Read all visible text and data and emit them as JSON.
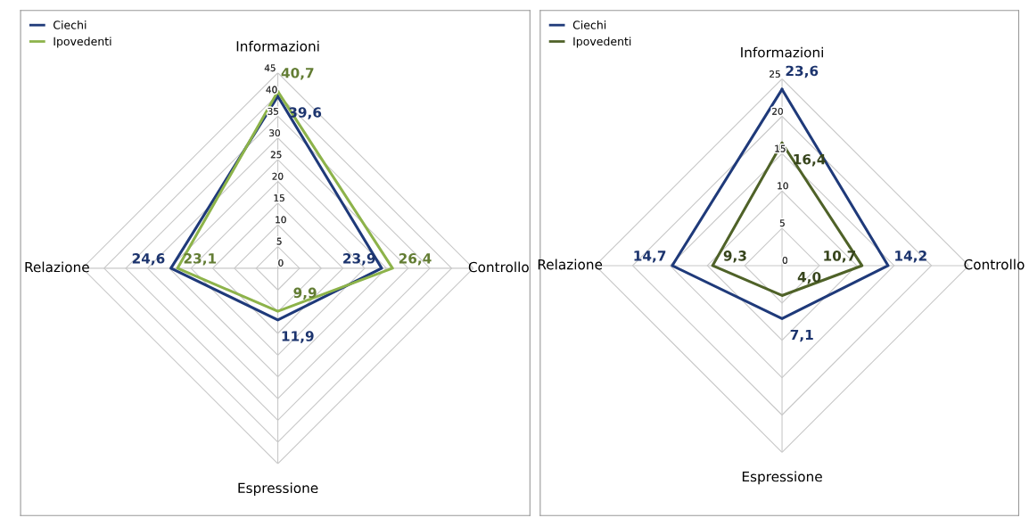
{
  "chart_data": [
    {
      "type": "radar",
      "categories": [
        "Informazioni",
        "Controllo",
        "Espressione",
        "Relazione"
      ],
      "ylim": [
        0,
        45
      ],
      "yticks": [
        0,
        5,
        10,
        15,
        20,
        25,
        30,
        35,
        40,
        45
      ],
      "legend": "top left",
      "grid": true,
      "series": [
        {
          "name": "Ciechi",
          "color": "#1f3a7a",
          "values": [
            39.6,
            23.9,
            11.9,
            24.6
          ],
          "value_labels": [
            "39,6",
            "23,9",
            "11,9",
            "24,6"
          ]
        },
        {
          "name": "Ipovedenti",
          "color": "#8db34a",
          "values": [
            40.7,
            26.4,
            9.9,
            23.1
          ],
          "value_labels": [
            "40,7",
            "26,4",
            "9,9",
            "23,1"
          ]
        }
      ]
    },
    {
      "type": "radar",
      "categories": [
        "Informazioni",
        "Controllo",
        "Espressione",
        "Relazione"
      ],
      "ylim": [
        0,
        25
      ],
      "yticks": [
        0,
        5,
        10,
        15,
        20,
        25
      ],
      "legend": "top left",
      "grid": true,
      "series": [
        {
          "name": "Ciechi",
          "color": "#1f3a7a",
          "values": [
            23.6,
            14.2,
            7.1,
            14.7
          ],
          "value_labels": [
            "23,6",
            "14,2",
            "7,1",
            "14,7"
          ]
        },
        {
          "name": "Ipovedenti",
          "color": "#4f6228",
          "values": [
            16.4,
            10.7,
            4.0,
            9.3
          ],
          "value_labels": [
            "16,4",
            "10,7",
            "4,0",
            "9,3"
          ]
        }
      ]
    }
  ]
}
